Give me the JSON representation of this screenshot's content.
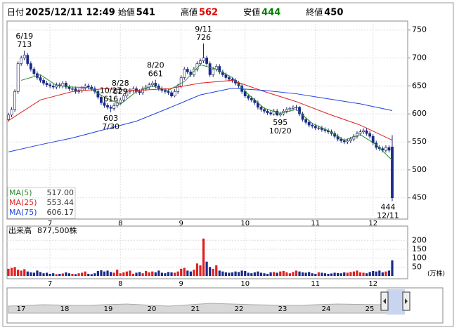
{
  "chart_data": {
    "type": "candlestick",
    "header": [
      {
        "label": "日付",
        "value": "2025/12/11 12:49",
        "color": "#000000"
      },
      {
        "label": "始値",
        "value": 541,
        "color": "#000000"
      },
      {
        "label": "高値",
        "value": 562,
        "color": "#e00000"
      },
      {
        "label": "安値",
        "value": 444,
        "color": "#008000"
      },
      {
        "label": "終値",
        "value": 450,
        "color": "#000000"
      }
    ],
    "up_color": "#ffffff",
    "up_stroke": "#1a1a60",
    "down_color": "#1a2a8a",
    "open": [
      590,
      598,
      608,
      640,
      690,
      700,
      705,
      690,
      680,
      672,
      665,
      660,
      655,
      652,
      650,
      648,
      652,
      650,
      655,
      648,
      645,
      645,
      640,
      642,
      646,
      650,
      648,
      645,
      640,
      630,
      620,
      615,
      612,
      610,
      615,
      620,
      625,
      632,
      640,
      642,
      645,
      640,
      638,
      645,
      648,
      652,
      655,
      650,
      645,
      642,
      640,
      638,
      632,
      640,
      650,
      665,
      680,
      675,
      670,
      680,
      690,
      695,
      700,
      690,
      670,
      680,
      685,
      675,
      670,
      665,
      662,
      660,
      655,
      650,
      640,
      632,
      628,
      625,
      620,
      612,
      608,
      605,
      602,
      600,
      605,
      598,
      600,
      605,
      608,
      610,
      612,
      612,
      600,
      590,
      585,
      580,
      578,
      575,
      575,
      572,
      570,
      568,
      565,
      560,
      555,
      552,
      550,
      552,
      555,
      560,
      565,
      568,
      570,
      565,
      560,
      548,
      540,
      538,
      535,
      540,
      541
    ],
    "high": [
      602,
      612,
      644,
      694,
      704,
      713,
      709,
      694,
      684,
      676,
      669,
      664,
      659,
      656,
      654,
      656,
      656,
      659,
      659,
      652,
      649,
      649,
      646,
      650,
      654,
      654,
      652,
      649,
      644,
      634,
      624,
      619,
      616,
      619,
      624,
      629,
      636,
      644,
      646,
      649,
      649,
      644,
      649,
      652,
      656,
      659,
      661,
      654,
      649,
      646,
      644,
      642,
      644,
      654,
      669,
      684,
      684,
      679,
      684,
      694,
      699,
      726,
      704,
      694,
      684,
      689,
      689,
      679,
      674,
      669,
      666,
      664,
      659,
      654,
      644,
      636,
      632,
      628,
      624,
      616,
      612,
      609,
      606,
      609,
      609,
      604,
      609,
      612,
      613,
      615,
      616,
      614,
      604,
      594,
      589,
      584,
      582,
      579,
      579,
      576,
      574,
      572,
      569,
      564,
      559,
      556,
      556,
      559,
      564,
      569,
      572,
      574,
      574,
      569,
      564,
      552,
      544,
      542,
      544,
      544,
      562
    ],
    "low": [
      586,
      594,
      604,
      636,
      686,
      696,
      686,
      676,
      668,
      661,
      656,
      651,
      648,
      646,
      644,
      644,
      646,
      646,
      644,
      641,
      641,
      636,
      636,
      638,
      642,
      644,
      641,
      636,
      626,
      616,
      611,
      608,
      603,
      606,
      611,
      616,
      621,
      628,
      636,
      638,
      636,
      634,
      634,
      641,
      644,
      648,
      646,
      641,
      638,
      636,
      634,
      629,
      630,
      636,
      646,
      661,
      671,
      666,
      666,
      676,
      686,
      691,
      686,
      666,
      666,
      676,
      671,
      666,
      661,
      658,
      656,
      651,
      646,
      636,
      628,
      624,
      621,
      616,
      608,
      604,
      601,
      598,
      597,
      597,
      596,
      595,
      597,
      601,
      604,
      606,
      606,
      596,
      586,
      581,
      576,
      574,
      571,
      571,
      568,
      566,
      564,
      561,
      556,
      551,
      548,
      546,
      546,
      548,
      551,
      556,
      561,
      564,
      561,
      556,
      544,
      536,
      534,
      531,
      531,
      531,
      444
    ],
    "close": [
      598,
      608,
      640,
      690,
      700,
      705,
      690,
      680,
      672,
      665,
      660,
      655,
      652,
      650,
      648,
      652,
      650,
      655,
      648,
      645,
      645,
      640,
      642,
      646,
      650,
      648,
      645,
      640,
      630,
      620,
      615,
      612,
      610,
      615,
      620,
      625,
      632,
      640,
      642,
      645,
      640,
      638,
      645,
      648,
      652,
      655,
      650,
      645,
      642,
      640,
      638,
      632,
      640,
      650,
      665,
      680,
      675,
      670,
      680,
      690,
      695,
      700,
      690,
      670,
      680,
      685,
      675,
      670,
      665,
      662,
      660,
      655,
      650,
      640,
      632,
      628,
      625,
      620,
      612,
      608,
      605,
      602,
      600,
      605,
      598,
      600,
      605,
      608,
      610,
      612,
      612,
      600,
      590,
      585,
      580,
      578,
      575,
      575,
      572,
      570,
      568,
      565,
      560,
      555,
      552,
      550,
      552,
      555,
      560,
      565,
      568,
      570,
      565,
      560,
      548,
      540,
      538,
      535,
      540,
      535,
      450
    ],
    "ylim": [
      412,
      766
    ],
    "yticks": [
      450,
      500,
      550,
      600,
      650,
      700,
      750
    ],
    "xticks": [
      {
        "value": 13,
        "label": "7"
      },
      {
        "value": 35,
        "label": "8"
      },
      {
        "value": 54,
        "label": "9"
      },
      {
        "value": 74,
        "label": "10"
      },
      {
        "value": 96,
        "label": "11"
      },
      {
        "value": 114,
        "label": "12"
      }
    ],
    "annotations": [
      {
        "date": "6/19",
        "value": 713
      },
      {
        "date": "7/30",
        "value": 603
      },
      {
        "date": "8/20",
        "value": 661
      },
      {
        "date": "8/28",
        "value": 629
      },
      {
        "date": "9/11",
        "value": 726
      },
      {
        "date": "10/20",
        "value": 595
      },
      {
        "date": "10/27",
        "value": 616
      },
      {
        "date": "12/11",
        "value": 444
      }
    ],
    "moving_averages": [
      {
        "name": "MA(5)",
        "color": "#2e8b2e",
        "latest": {
          "value": 517,
          "label": "517.00"
        },
        "x": [
          4,
          10,
          15,
          20,
          25,
          30,
          35,
          40,
          45,
          50,
          55,
          60,
          65,
          70,
          75,
          80,
          85,
          90,
          95,
          100,
          105,
          110,
          115,
          120
        ],
        "values": [
          660,
          670,
          651,
          648,
          647,
          630,
          617,
          640,
          650,
          642,
          658,
          688,
          680,
          665,
          635,
          610,
          601,
          608,
          583,
          570,
          553,
          563,
          545,
          517
        ]
      },
      {
        "name": "MA(25)",
        "color": "#e02020",
        "latest": {
          "value": 553.44,
          "label": "553.44"
        },
        "x": [
          0,
          10,
          20,
          30,
          40,
          50,
          60,
          70,
          80,
          90,
          100,
          110,
          120
        ],
        "values": [
          588,
          625,
          640,
          645,
          642,
          645,
          655,
          660,
          640,
          622,
          600,
          580,
          553
        ]
      },
      {
        "name": "MA(75)",
        "color": "#2040e0",
        "latest": {
          "value": 606.17,
          "label": "606.17"
        },
        "x": [
          0,
          10,
          20,
          30,
          40,
          50,
          60,
          70,
          80,
          90,
          100,
          110,
          120
        ],
        "values": [
          532,
          545,
          557,
          572,
          587,
          610,
          634,
          646,
          642,
          636,
          627,
          618,
          606
        ]
      }
    ],
    "volume": {
      "title": "出来高",
      "latest": {
        "value": 877500,
        "label": "877,500株"
      },
      "unit": "(万株)",
      "up_color": "#e02020",
      "down_color": "#1a2a8a",
      "ylim": [
        0,
        280
      ],
      "yticks": [
        50,
        100,
        150,
        200
      ],
      "values": [
        40,
        45,
        50,
        35,
        30,
        38,
        25,
        20,
        18,
        30,
        22,
        15,
        18,
        12,
        15,
        10,
        12,
        14,
        20,
        15,
        12,
        10,
        15,
        18,
        25,
        12,
        10,
        15,
        28,
        32,
        25,
        30,
        22,
        18,
        35,
        15,
        20,
        25,
        30,
        12,
        18,
        22,
        15,
        28,
        20,
        25,
        20,
        30,
        18,
        15,
        22,
        20,
        18,
        25,
        40,
        45,
        30,
        25,
        35,
        70,
        60,
        210,
        80,
        50,
        40,
        60,
        30,
        25,
        20,
        18,
        20,
        25,
        22,
        30,
        28,
        18,
        15,
        20,
        25,
        18,
        15,
        12,
        20,
        22,
        18,
        25,
        28,
        20,
        15,
        22,
        30,
        25,
        20,
        18,
        22,
        15,
        12,
        20,
        18,
        15,
        12,
        14,
        18,
        16,
        15,
        20,
        18,
        22,
        25,
        30,
        20,
        18,
        15,
        22,
        28,
        25,
        30,
        20,
        25,
        30,
        87.75
      ]
    },
    "navigator": {
      "labels": [
        17,
        18,
        19,
        20,
        21,
        22,
        23,
        24,
        25
      ]
    }
  }
}
